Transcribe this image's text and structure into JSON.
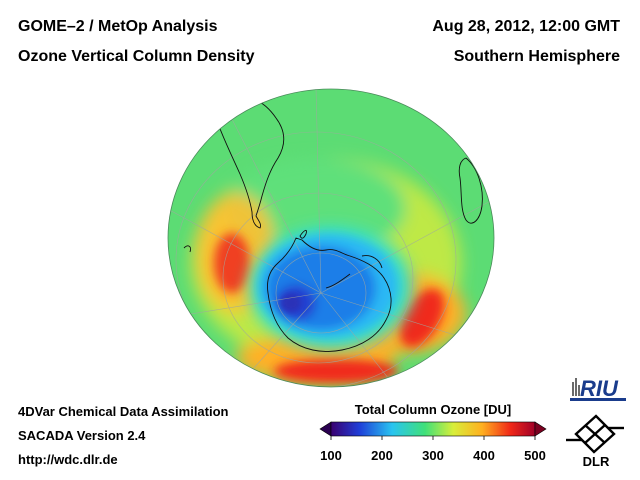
{
  "header": {
    "title_left_1": "GOME–2 / MetOp Analysis",
    "title_left_2": "Ozone Vertical Column Density",
    "title_right_1": "Aug 28, 2012, 12:00 GMT",
    "title_right_2": "Southern Hemisphere"
  },
  "footer": {
    "line1": "4DVar Chemical Data Assimilation",
    "line2": "SACADA Version 2.4",
    "line3": "http://wdc.dlr.de"
  },
  "colorbar": {
    "title": "Total Column Ozone [DU]",
    "ticks": [
      "100",
      "200",
      "300",
      "400",
      "500"
    ],
    "range": [
      100,
      500
    ],
    "colors": [
      "#3a0070",
      "#1f3fd8",
      "#29c4f0",
      "#3fe07a",
      "#d8ee3a",
      "#ffb020",
      "#f02818",
      "#a00028"
    ]
  },
  "map": {
    "projection": "orthographic, south polar",
    "features": [
      "ozone-hole",
      "antarctica",
      "south-america",
      "africa"
    ]
  },
  "logos": {
    "riu": "RIU",
    "dlr": "DLR"
  }
}
